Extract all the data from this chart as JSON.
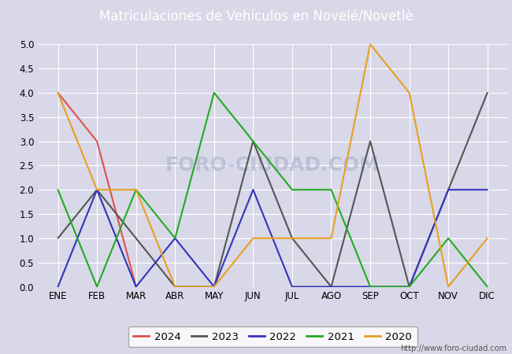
{
  "title": "Matriculaciones de Vehiculos en Novelé/Novetlè",
  "months": [
    "ENE",
    "FEB",
    "MAR",
    "ABR",
    "MAY",
    "JUN",
    "JUL",
    "AGO",
    "SEP",
    "OCT",
    "NOV",
    "DIC"
  ],
  "series": {
    "2024": {
      "values": [
        4,
        3,
        0,
        null,
        null,
        null,
        null,
        null,
        null,
        null,
        null,
        null
      ],
      "color": "#e05050",
      "linewidth": 1.5
    },
    "2023": {
      "values": [
        1,
        2,
        1,
        0,
        0,
        3,
        1,
        0,
        3,
        0,
        2,
        4
      ],
      "color": "#555555",
      "linewidth": 1.5
    },
    "2022": {
      "values": [
        0,
        2,
        0,
        1,
        0,
        2,
        0,
        0,
        0,
        0,
        2,
        2
      ],
      "color": "#3333bb",
      "linewidth": 1.5
    },
    "2021": {
      "values": [
        2,
        0,
        2,
        1,
        4,
        3,
        2,
        2,
        0,
        0,
        1,
        0
      ],
      "color": "#22aa22",
      "linewidth": 1.5
    },
    "2020": {
      "values": [
        4,
        2,
        2,
        0,
        0,
        1,
        1,
        1,
        5,
        4,
        0,
        1
      ],
      "color": "#e8a020",
      "linewidth": 1.5
    }
  },
  "ylim": [
    0,
    5.0
  ],
  "yticks": [
    0.0,
    0.5,
    1.0,
    1.5,
    2.0,
    2.5,
    3.0,
    3.5,
    4.0,
    4.5,
    5.0
  ],
  "background_color": "#d8d8e8",
  "plot_bg_color": "#d8d8e8",
  "title_bg_color": "#5577aa",
  "title_color": "white",
  "title_fontsize": 12,
  "grid_color": "#ffffff",
  "watermark": "FORO-CIUDAD.COM",
  "url": "http://www.foro-ciudad.com",
  "legend_years": [
    "2024",
    "2023",
    "2022",
    "2021",
    "2020"
  ],
  "legend_colors": [
    "#e05050",
    "#555555",
    "#3333bb",
    "#22aa22",
    "#e8a020"
  ]
}
